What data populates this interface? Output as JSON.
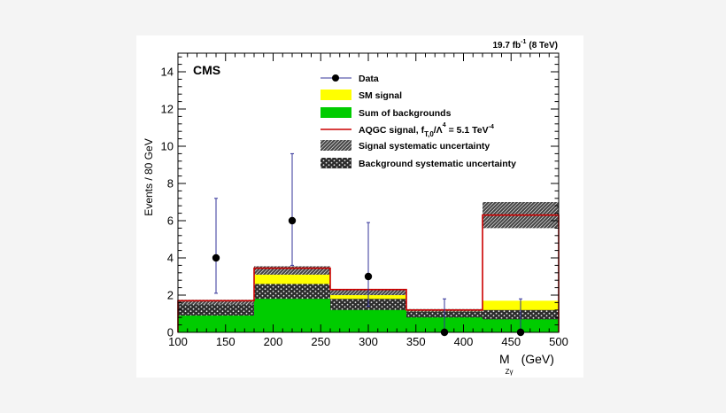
{
  "chart_data": {
    "type": "bar",
    "experiment_label": "CMS",
    "luminosity": {
      "value": "19.7 fb",
      "exponent": "-1",
      "energy": "(8 TeV)"
    },
    "xlabel": {
      "main": "M",
      "subscript": "Zγ",
      "unit": "(GeV)"
    },
    "ylabel": "Events / 80 GeV",
    "xlim": [
      100,
      500
    ],
    "ylim": [
      0,
      15
    ],
    "xticks": [
      100,
      150,
      200,
      250,
      300,
      350,
      400,
      450,
      500
    ],
    "yticks": [
      0,
      2,
      4,
      6,
      8,
      10,
      12,
      14
    ],
    "bin_edges": [
      100,
      180,
      260,
      340,
      420,
      500
    ],
    "series": [
      {
        "name": "Sum of backgrounds",
        "values": [
          1.0,
          2.0,
          1.4,
          0.9,
          0.8
        ],
        "color": "#00cc00"
      },
      {
        "name": "SM signal",
        "values": [
          0.6,
          1.3,
          0.8,
          0.3,
          0.9
        ],
        "color": "#ffff00"
      },
      {
        "name": "AQGC signal",
        "values": [
          1.7,
          3.45,
          2.3,
          1.2,
          6.3
        ],
        "color": "#cc0000"
      }
    ],
    "background_uncertainty": [
      [
        0.9,
        1.5
      ],
      [
        1.8,
        2.6
      ],
      [
        1.2,
        1.8
      ],
      [
        0.8,
        1.1
      ],
      [
        0.7,
        1.2
      ]
    ],
    "signal_uncertainty": [
      [
        1.45,
        1.75
      ],
      [
        3.1,
        3.55
      ],
      [
        2.0,
        2.3
      ],
      [
        1.1,
        1.25
      ],
      [
        5.6,
        7.0
      ]
    ],
    "data": {
      "name": "Data",
      "x": [
        140,
        220,
        300,
        380,
        460
      ],
      "y": [
        4,
        6,
        3,
        0,
        0
      ],
      "err_low": [
        1.9,
        2.4,
        1.6,
        0,
        0
      ],
      "err_high": [
        3.2,
        3.6,
        2.9,
        1.8,
        1.8
      ]
    },
    "legend": {
      "position": "top-right",
      "data_label": "Data",
      "sm_label": "SM signal",
      "bkg_label": "Sum of backgrounds",
      "aqgc_label_main": "AQGC signal, f",
      "aqgc_label_sub": "T,0",
      "aqgc_label_mid": "/Λ",
      "aqgc_label_sup": "4",
      "aqgc_label_value": "= 5.1 TeV",
      "aqgc_label_sup2": "-4",
      "sig_unc_label": "Signal systematic uncertainty",
      "bkg_unc_label": "Background systematic uncertainty"
    }
  }
}
